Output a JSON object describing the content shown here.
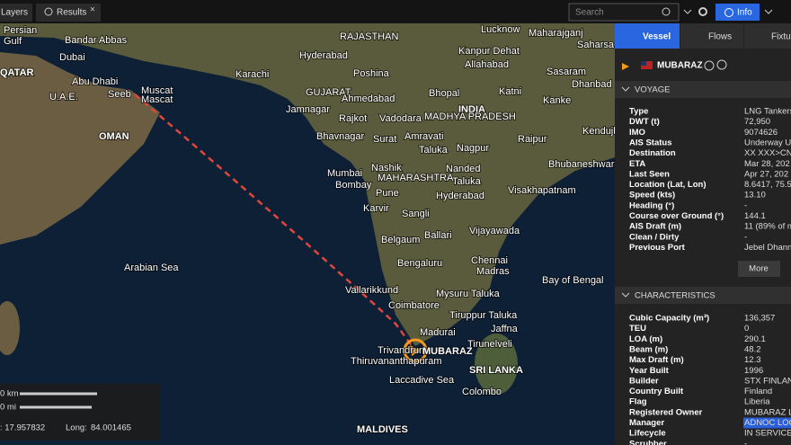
{
  "toolbar": {
    "tabs": [
      "Layers",
      "Results"
    ],
    "search_placeholder": "Search",
    "info": "Info"
  },
  "map": {
    "labels": [
      "Persian",
      "Gulf",
      "Bandar Abbas",
      "Dubai",
      "QATAR",
      "Abu Dhabi",
      "U.A.E.",
      "Seeb",
      "Muscat",
      "Mascat",
      "OMAN",
      "Karachi",
      "RAJASTHAN",
      "Lucknow",
      "Maharajganj",
      "Hyderabad",
      "Kanpur Dehat",
      "Allahabad",
      "Saharsa",
      "Poshina",
      "Sasaram",
      "Dhanbad",
      "GUJARAT",
      "Bhopal",
      "Katni",
      "Ahmedabad",
      "INDIA",
      "Kanke",
      "Jamnagar",
      "Rajkot",
      "Vadodara",
      "MADHYA PRADESH",
      "Kendujhar",
      "Bhavnagar",
      "Surat",
      "Amravati",
      "Taluka",
      "Nagpur",
      "Raipur",
      "Bhubaneshwar",
      "Nashik",
      "Nanded",
      "Taluka",
      "Mumbai",
      "Bombay",
      "MAHARASHTRA",
      "Pune",
      "Visakhapatnam",
      "Hyderabad",
      "Karvir",
      "Sangli",
      "Belgaum",
      "Ballari",
      "Vijayawada",
      "Arabian Sea",
      "Bengaluru",
      "Chennai",
      "Madras",
      "Bay of Bengal",
      "Vallarikkund",
      "Mysuru Taluka",
      "Coimbatore",
      "Tiruppur Taluka",
      "Jaffna",
      "Madurai",
      "Tirunelveli",
      "Trivandrum",
      "MUBARAZ",
      "Thiruvananthapuram",
      "Laccadive Sea",
      "SRI LANKA",
      "Colombo",
      "MALDIVES"
    ],
    "scale": [
      "0 km",
      "0 mi"
    ],
    "lat": ": 17.957832",
    "long_label": "Long:",
    "long": "84.001465"
  },
  "panel": {
    "tabs": [
      "Vessel",
      "Flows",
      "Fixtu"
    ],
    "vessel_name": "MUBARAZ",
    "voyage": {
      "title": "VOYAGE",
      "rows": [
        [
          "Type",
          "LNG Tankers"
        ],
        [
          "DWT (t)",
          "72,950"
        ],
        [
          "IMO",
          "9074626"
        ],
        [
          "AIS Status",
          "Underway U"
        ],
        [
          "Destination",
          "XX XXX>CN"
        ],
        [
          "ETA",
          "Mar 28, 202"
        ],
        [
          "Last Seen",
          "Apr 27, 202"
        ],
        [
          "Location (Lat, Lon)",
          "8.6417, 75.5"
        ],
        [
          "Speed (kts)",
          "13.10"
        ],
        [
          "Heading (°)",
          "-"
        ],
        [
          "Course over Ground (°)",
          "144.1"
        ],
        [
          "AIS Draft (m)",
          "11 (89% of m"
        ],
        [
          "Clean / Dirty",
          "-"
        ],
        [
          "Previous Port",
          "Jebel Dhann"
        ]
      ],
      "more": "More"
    },
    "characteristics": {
      "title": "CHARACTERISTICS",
      "rows": [
        [
          "Cubic Capacity (m³)",
          "136,357"
        ],
        [
          "TEU",
          "0"
        ],
        [
          "LOA (m)",
          "290.1"
        ],
        [
          "Beam (m)",
          "48.2"
        ],
        [
          "Max Draft (m)",
          "12.3"
        ],
        [
          "Year Built",
          "1996"
        ],
        [
          "Builder",
          "STX FINLAN"
        ],
        [
          "Country Built",
          "Finland"
        ],
        [
          "Flag",
          "Liberia"
        ],
        [
          "Registered Owner",
          "MUBARAZ L"
        ],
        [
          "Manager",
          "ADNOC LOG"
        ],
        [
          "Lifecycle",
          "IN SERVICE/"
        ],
        [
          "Scrubber",
          "-"
        ]
      ]
    }
  }
}
